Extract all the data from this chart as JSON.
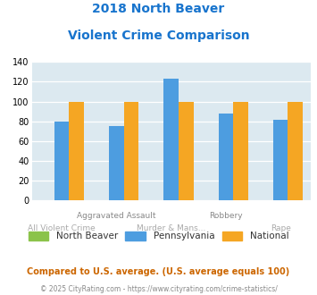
{
  "title_line1": "2018 North Beaver",
  "title_line2": "Violent Crime Comparison",
  "title_color": "#1874cd",
  "north_beaver": [
    0,
    0,
    0,
    0,
    0
  ],
  "pennsylvania": [
    80,
    75,
    123,
    88,
    82
  ],
  "national": [
    100,
    100,
    100,
    100,
    100
  ],
  "color_nb": "#8bc34a",
  "color_pa": "#4d9de0",
  "color_nat": "#f5a623",
  "ylim": [
    0,
    140
  ],
  "yticks": [
    0,
    20,
    40,
    60,
    80,
    100,
    120,
    140
  ],
  "bg_color": "#dce9f0",
  "grid_color": "#ffffff",
  "footer1": "Compared to U.S. average. (U.S. average equals 100)",
  "footer2": "© 2025 CityRating.com - https://www.cityrating.com/crime-statistics/",
  "footer1_color": "#cc6600",
  "footer2_color": "#888888",
  "legend_labels": [
    "North Beaver",
    "Pennsylvania",
    "National"
  ],
  "label_top_row": [
    "",
    "Aggravated Assault",
    "",
    "Robbery",
    ""
  ],
  "label_bot_row": [
    "All Violent Crime",
    "",
    "Murder & Mans...",
    "",
    "Rape"
  ]
}
